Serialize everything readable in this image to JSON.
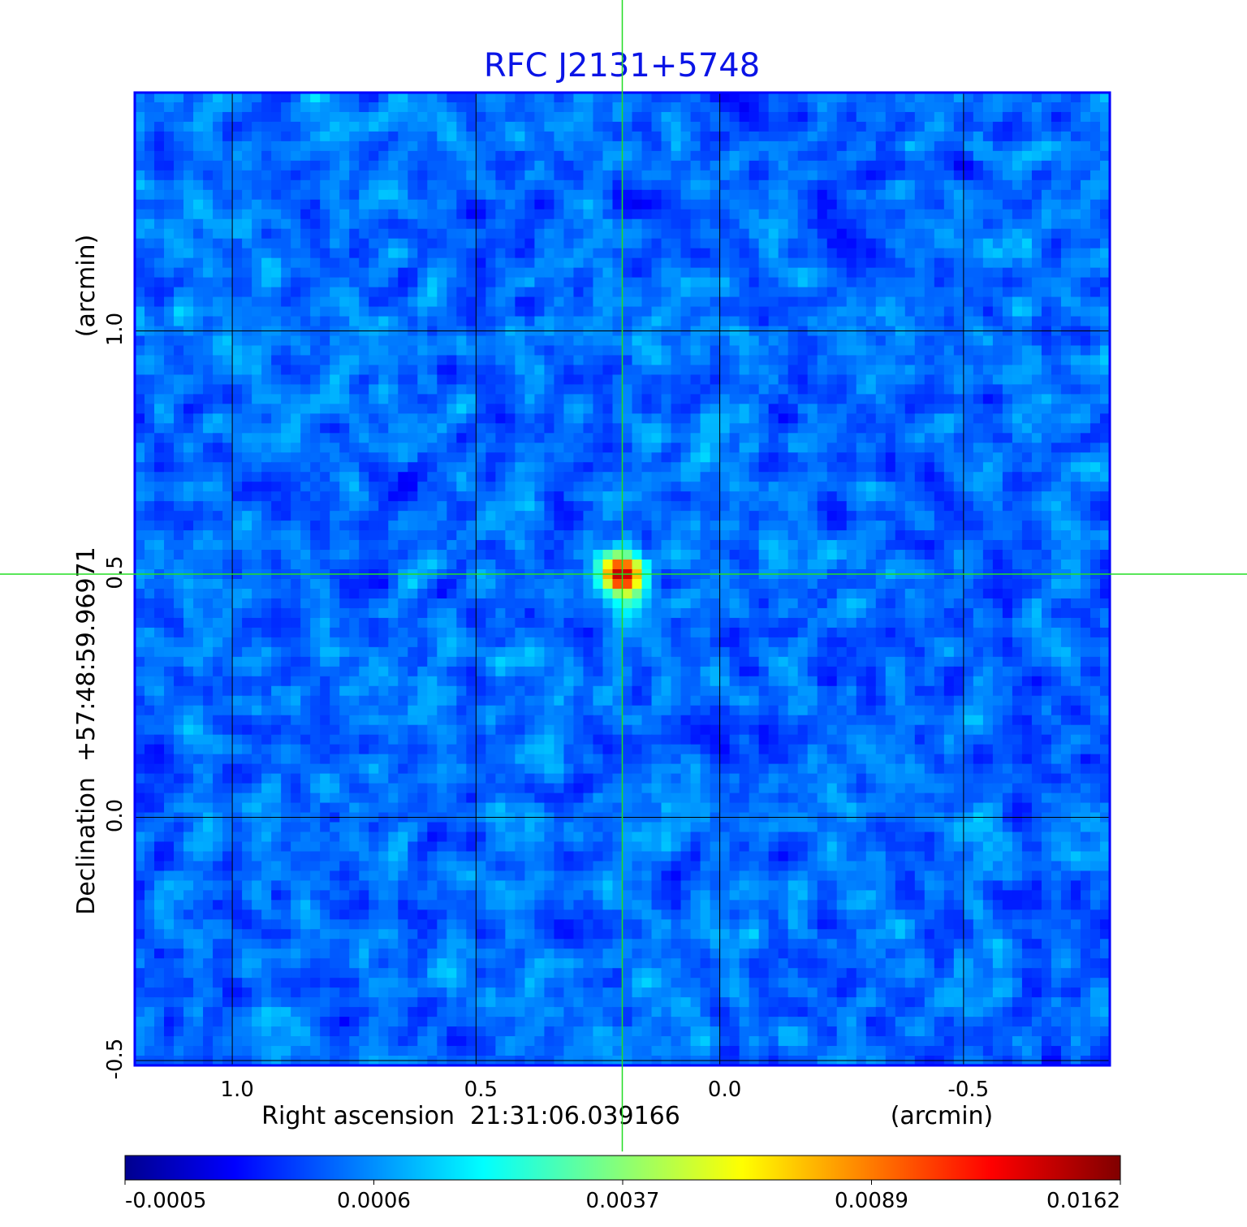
{
  "chart_data": {
    "type": "heatmap",
    "title": "RFC J2131+5748",
    "title_color": "#0a14e6",
    "xlabel": "Right ascension  21:31:06.039166",
    "xunit": "(arcmin)",
    "ylabel": "Declination  +57:48:59.96971",
    "yunit": "(arcmin)",
    "xlim": [
      1.2,
      -0.8
    ],
    "ylim": [
      -0.51,
      1.49
    ],
    "xticks": [
      1.0,
      0.5,
      0.0,
      -0.5
    ],
    "xtick_labels": [
      "1.0",
      "0.5",
      "0.0",
      "-0.5"
    ],
    "yticks": [
      1.0,
      0.5,
      0.0,
      -0.5
    ],
    "ytick_labels": [
      "1.0",
      "0.5",
      "0.0",
      "-0.5"
    ],
    "grid": true,
    "grid_color": "#000000",
    "frame_color": "#0000ff",
    "colormap": "jet",
    "colorbar": {
      "placement": "bottom",
      "tick_labels": [
        "-0.0005",
        "0.0006",
        "0.0037",
        "0.0089",
        "0.0162"
      ],
      "min": -0.0005,
      "max": 0.0162
    },
    "peak": {
      "x": 0.2,
      "y": 0.5,
      "value": 0.0162
    },
    "crosshair": {
      "x": 0.2,
      "y": 0.5,
      "color": "#00dd00"
    }
  }
}
